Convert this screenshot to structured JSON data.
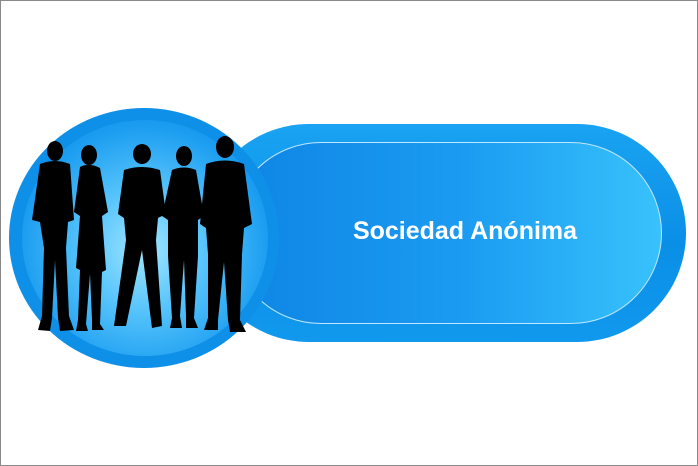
{
  "badge": {
    "label": "Sociedad Anónima",
    "icon": "business-people-group-icon"
  },
  "colors": {
    "accent": "#0f90e8",
    "accent_light": "#38c2fb",
    "text": "#ffffff",
    "silhouette": "#000000"
  }
}
